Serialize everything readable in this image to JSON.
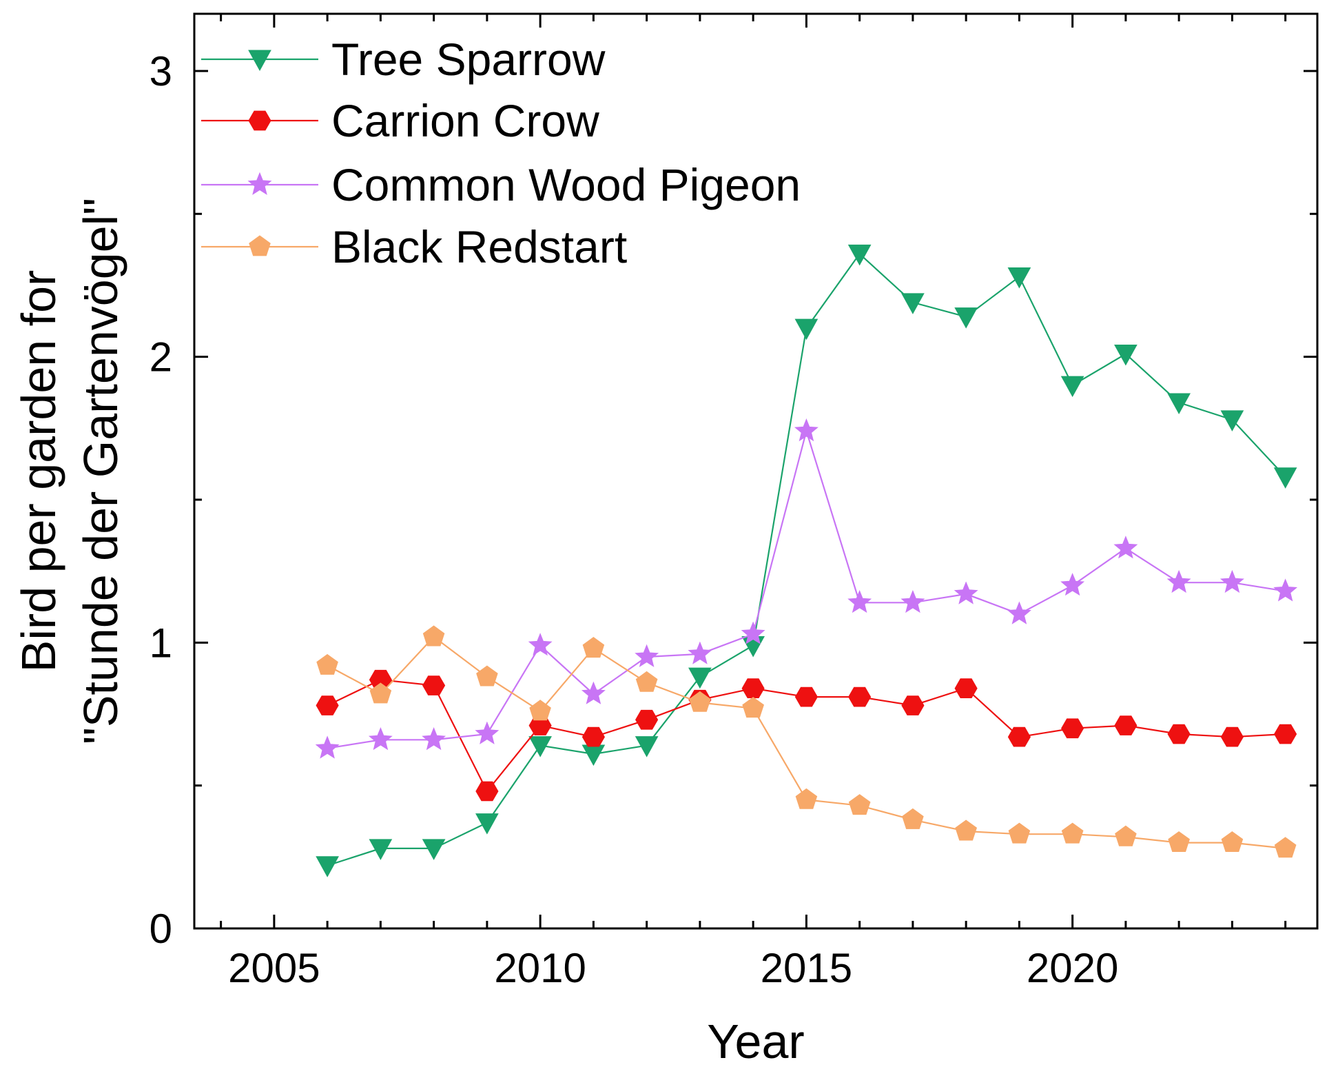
{
  "chart_data": {
    "type": "line",
    "title": "",
    "xlabel": "Year",
    "ylabel_lines": [
      "Bird per garden for",
      "\"Stunde der Gartenvögel\""
    ],
    "xlim": [
      2003.5,
      2024.6
    ],
    "ylim": [
      0,
      3.2
    ],
    "xticks": [
      2005,
      2010,
      2015,
      2020
    ],
    "xtick_labels": [
      "2005",
      "2010",
      "2015",
      "2020"
    ],
    "yticks": [
      0,
      1,
      2,
      3
    ],
    "ytick_labels": [
      "0",
      "1",
      "2",
      "3"
    ],
    "legend_position": "top-left",
    "x": [
      2006,
      2007,
      2008,
      2009,
      2010,
      2011,
      2012,
      2013,
      2014,
      2015,
      2016,
      2017,
      2018,
      2019,
      2020,
      2021,
      2022,
      2023,
      2024
    ],
    "series": [
      {
        "name": "Tree Sparrow",
        "color": "#1aa36b",
        "marker": "triangle-down",
        "values": [
          0.22,
          0.28,
          0.28,
          0.37,
          0.64,
          0.61,
          0.64,
          0.88,
          0.99,
          2.1,
          2.36,
          2.19,
          2.14,
          2.28,
          1.9,
          2.01,
          1.84,
          1.78,
          1.58
        ]
      },
      {
        "name": "Carrion Crow",
        "color": "#ee1111",
        "marker": "hexagon",
        "values": [
          0.78,
          0.87,
          0.85,
          0.48,
          0.71,
          0.67,
          0.73,
          0.8,
          0.84,
          0.81,
          0.81,
          0.78,
          0.84,
          0.67,
          0.7,
          0.71,
          0.68,
          0.67,
          0.68
        ]
      },
      {
        "name": "Common Wood Pigeon",
        "color": "#c875f5",
        "marker": "star",
        "values": [
          0.63,
          0.66,
          0.66,
          0.68,
          0.99,
          0.82,
          0.95,
          0.96,
          1.03,
          1.74,
          1.14,
          1.14,
          1.17,
          1.1,
          1.2,
          1.33,
          1.21,
          1.21,
          1.18
        ]
      },
      {
        "name": "Black Redstart",
        "color": "#f7a868",
        "marker": "pentagon",
        "values": [
          0.92,
          0.82,
          1.02,
          0.88,
          0.76,
          0.98,
          0.86,
          0.79,
          0.77,
          0.45,
          0.43,
          0.38,
          0.34,
          0.33,
          0.33,
          0.32,
          0.3,
          0.3,
          0.28
        ]
      }
    ]
  }
}
